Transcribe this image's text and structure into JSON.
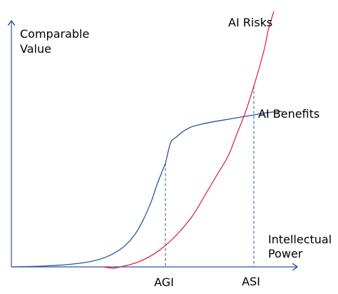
{
  "chart_data": {
    "type": "line",
    "title": "",
    "ylabel": [
      "Comparable",
      "Value"
    ],
    "xlabel": [
      "Intellectual",
      "Power"
    ],
    "x_ticks": [
      {
        "label": "AGI",
        "x": 0.54
      },
      {
        "label": "ASI",
        "x": 0.85
      }
    ],
    "xlim": [
      0,
      1
    ],
    "ylim": [
      0,
      1
    ],
    "grid": false,
    "legend": "none",
    "series": [
      {
        "name": "AI Benefits",
        "color": "#2e54a0",
        "points": [
          [
            0.0,
            0.0
          ],
          [
            0.1,
            0.003
          ],
          [
            0.2,
            0.01
          ],
          [
            0.28,
            0.023
          ],
          [
            0.34,
            0.045
          ],
          [
            0.39,
            0.08
          ],
          [
            0.43,
            0.13
          ],
          [
            0.46,
            0.19
          ],
          [
            0.49,
            0.27
          ],
          [
            0.51,
            0.34
          ],
          [
            0.53,
            0.4
          ],
          [
            0.54,
            0.43
          ],
          [
            0.55,
            0.48
          ],
          [
            0.56,
            0.52
          ],
          [
            0.58,
            0.54
          ],
          [
            0.6,
            0.56
          ],
          [
            0.63,
            0.58
          ],
          [
            0.66,
            0.59
          ],
          [
            0.7,
            0.6
          ],
          [
            0.75,
            0.61
          ],
          [
            0.8,
            0.62
          ],
          [
            0.85,
            0.63
          ],
          [
            0.9,
            0.64
          ],
          [
            0.95,
            0.645
          ]
        ]
      },
      {
        "name": "AI Risks",
        "color": "#d62d48",
        "points": [
          [
            0.32,
            0.0
          ],
          [
            0.36,
            -0.005
          ],
          [
            0.4,
            0.005
          ],
          [
            0.44,
            0.018
          ],
          [
            0.48,
            0.04
          ],
          [
            0.52,
            0.07
          ],
          [
            0.56,
            0.11
          ],
          [
            0.6,
            0.16
          ],
          [
            0.64,
            0.22
          ],
          [
            0.68,
            0.3
          ],
          [
            0.72,
            0.38
          ],
          [
            0.76,
            0.46
          ],
          [
            0.79,
            0.55
          ],
          [
            0.82,
            0.64
          ],
          [
            0.85,
            0.75
          ],
          [
            0.87,
            0.83
          ],
          [
            0.89,
            0.92
          ],
          [
            0.9,
            0.98
          ],
          [
            0.92,
            1.06
          ]
        ]
      }
    ],
    "reference_lines": [
      {
        "x": 0.54,
        "y": 0.43,
        "color": "#2e54a0",
        "style": "dashed"
      },
      {
        "x": 0.85,
        "y": 0.75,
        "color": "#2e54a0",
        "style": "dashed"
      }
    ]
  }
}
